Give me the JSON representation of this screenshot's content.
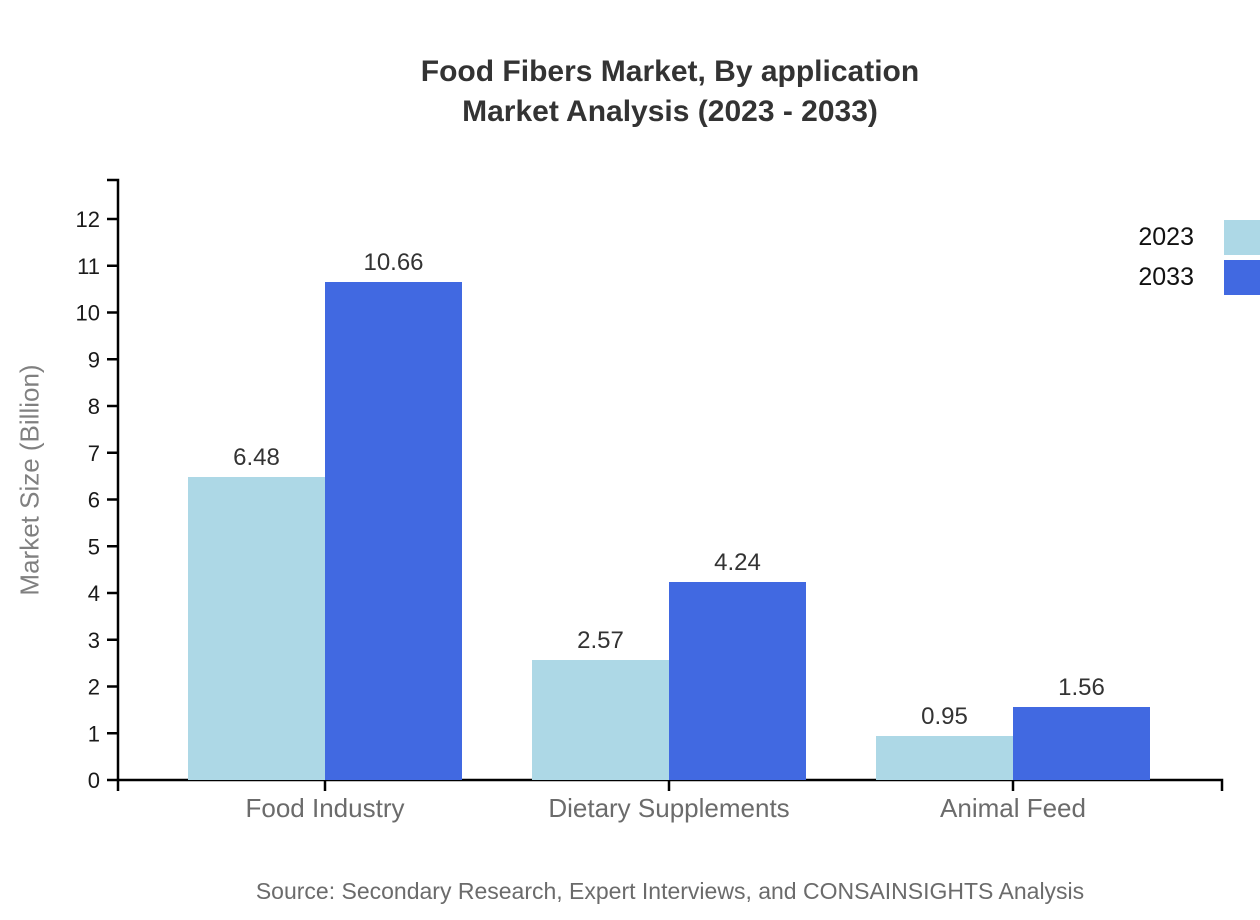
{
  "title": {
    "line1": "Food Fibers Market, By application",
    "line2": "Market Analysis (2023 - 2033)"
  },
  "legend": [
    {
      "label": "2023",
      "color": "#ADD8E6"
    },
    {
      "label": "2033",
      "color": "#4169E1"
    }
  ],
  "source": "Source: Secondary Research, Expert Interviews, and CONSAINSIGHTS Analysis",
  "chart_data": {
    "type": "bar",
    "title": "Food Fibers Market, By application Market Analysis (2023 - 2033)",
    "categories": [
      "Food Industry",
      "Dietary Supplements",
      "Animal Feed"
    ],
    "series": [
      {
        "name": "2023",
        "color": "#ADD8E6",
        "values": [
          6.48,
          2.57,
          0.95
        ]
      },
      {
        "name": "2033",
        "color": "#4169E1",
        "values": [
          10.66,
          4.24,
          1.56
        ]
      }
    ],
    "ylabel": "Market Size (Billion)",
    "xlabel": "",
    "ylim": [
      0,
      12
    ],
    "yticks": [
      0,
      1,
      2,
      3,
      4,
      5,
      6,
      7,
      8,
      9,
      10,
      11,
      12
    ],
    "grid": false,
    "legend_position": "top-right",
    "value_labels": true,
    "value_decimals": 2
  }
}
